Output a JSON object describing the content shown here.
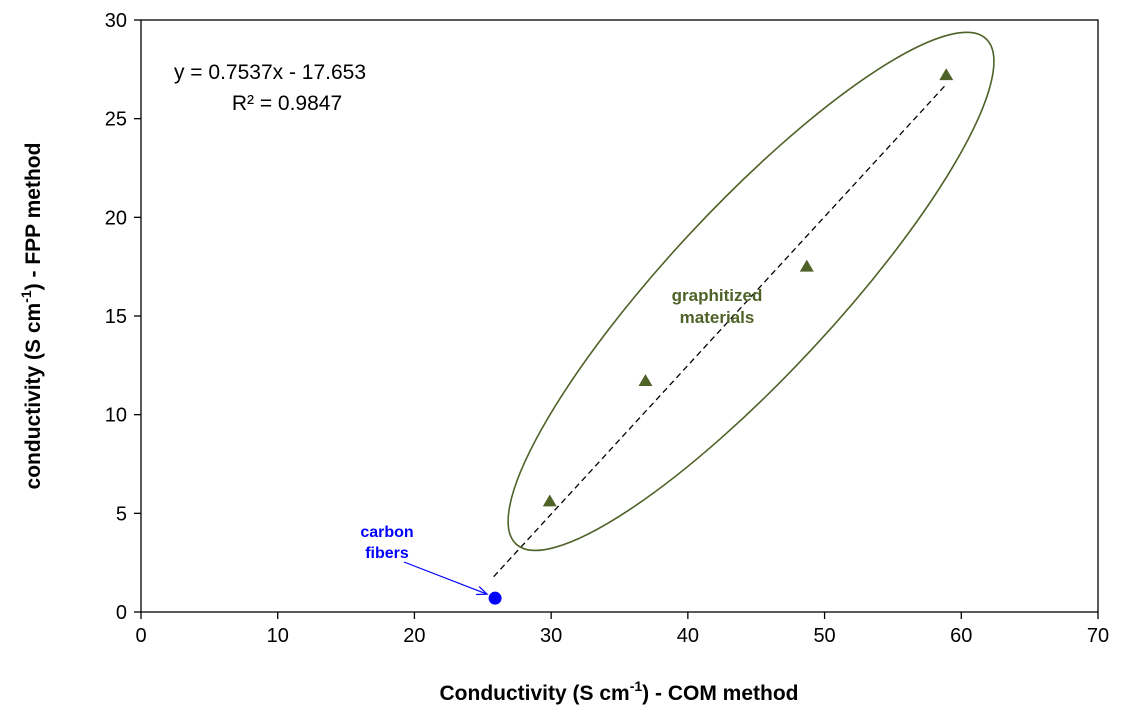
{
  "chart_data": {
    "type": "scatter",
    "xlabel_main": "Conductivity (S cm",
    "xlabel_sup": "-1",
    "xlabel_tail": ") - COM method",
    "ylabel_main": "conductivity (S cm",
    "ylabel_sup": "-1",
    "ylabel_tail": ") - FPP method",
    "xlim": [
      0,
      70
    ],
    "ylim": [
      0,
      30
    ],
    "xticks": [
      0,
      10,
      20,
      30,
      40,
      50,
      60,
      70
    ],
    "yticks": [
      0,
      5,
      10,
      15,
      20,
      25,
      30
    ],
    "grid": false,
    "series": [
      {
        "marker": "triangle",
        "color": "#4f6228",
        "points": [
          {
            "x": 29.9,
            "y": 5.6
          },
          {
            "x": 36.9,
            "y": 11.7
          },
          {
            "x": 48.7,
            "y": 17.5
          },
          {
            "x": 58.9,
            "y": 27.2
          }
        ]
      },
      {
        "marker": "circle",
        "color": "#0000ff",
        "points": [
          {
            "x": 25.9,
            "y": 0.7
          }
        ]
      }
    ],
    "trendline": {
      "slope": 0.7537,
      "intercept": -17.653,
      "x_range": [
        25.8,
        58.9
      ],
      "style": "dashed",
      "color": "#000000"
    },
    "equation_text": "y = 0.7537x - 17.653",
    "r2_text": "R² = 0.9847",
    "annotations": {
      "group_label_line1": "graphitized",
      "group_label_line2": "materials",
      "group_color": "#4f6228",
      "point_label_line1": "carbon",
      "point_label_line2": "fibers",
      "point_color": "#0000ff"
    }
  }
}
